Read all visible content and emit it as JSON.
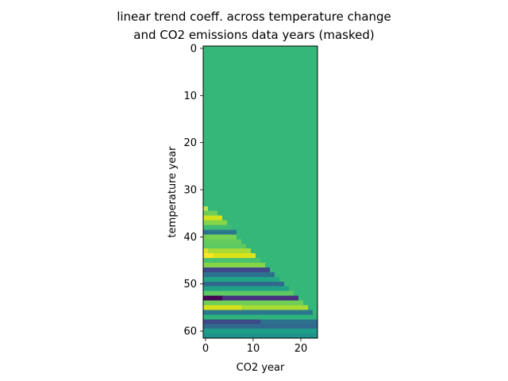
{
  "chart_data": {
    "type": "heatmap",
    "title": [
      "linear trend coeff. across temperature change",
      "and CO2 emissions data years (masked)"
    ],
    "xlabel": "CO2 year",
    "ylabel": "temperature year",
    "x_ticks": [
      0,
      10,
      20
    ],
    "y_ticks": [
      0,
      10,
      20,
      30,
      40,
      50,
      60
    ],
    "colormap": "viridis",
    "masked_color": "#35b779",
    "grid": false,
    "legend": "none",
    "x_range": [
      -0.5,
      23.5
    ],
    "y_range": [
      61.5,
      -0.5
    ],
    "n_cols": 24,
    "n_rows": 62,
    "rows": [
      {
        "t": 34,
        "cells": [
          [
            0,
            0,
            "#bde64d"
          ]
        ]
      },
      {
        "t": 35,
        "cells": [
          [
            0,
            2,
            "#6ece58"
          ]
        ]
      },
      {
        "t": 36,
        "cells": [
          [
            0,
            3,
            "#d2e21b"
          ]
        ]
      },
      {
        "t": 37,
        "cells": [
          [
            0,
            4,
            "#86d549"
          ]
        ]
      },
      {
        "t": 38,
        "cells": [
          [
            0,
            5,
            "#3fbc73"
          ]
        ]
      },
      {
        "t": 39,
        "cells": [
          [
            0,
            0,
            "#2c728e"
          ],
          [
            1,
            6,
            "#2a788e"
          ]
        ]
      },
      {
        "t": 40,
        "cells": [
          [
            0,
            6,
            "#75d054"
          ]
        ]
      },
      {
        "t": 41,
        "cells": [
          [
            0,
            7,
            "#63cb5f"
          ]
        ]
      },
      {
        "t": 42,
        "cells": [
          [
            0,
            8,
            "#5ec962"
          ]
        ]
      },
      {
        "t": 43,
        "cells": [
          [
            0,
            0,
            "#dde318"
          ],
          [
            1,
            9,
            "#a8db34"
          ]
        ]
      },
      {
        "t": 44,
        "cells": [
          [
            0,
            1,
            "#fde725"
          ],
          [
            2,
            10,
            "#dde318"
          ]
        ]
      },
      {
        "t": 45,
        "cells": [
          [
            0,
            11,
            "#4ac16d"
          ]
        ]
      },
      {
        "t": 46,
        "cells": [
          [
            0,
            12,
            "#86d549"
          ]
        ]
      },
      {
        "t": 47,
        "cells": [
          [
            0,
            13,
            "#3e4989"
          ]
        ]
      },
      {
        "t": 48,
        "cells": [
          [
            0,
            14,
            "#2c728e"
          ]
        ]
      },
      {
        "t": 49,
        "cells": [
          [
            0,
            15,
            "#21a585"
          ]
        ]
      },
      {
        "t": 50,
        "cells": [
          [
            0,
            16,
            "#31688e"
          ]
        ]
      },
      {
        "t": 51,
        "cells": [
          [
            0,
            17,
            "#1fa187"
          ]
        ]
      },
      {
        "t": 52,
        "cells": [
          [
            0,
            18,
            "#5ec962"
          ]
        ]
      },
      {
        "t": 53,
        "cells": [
          [
            0,
            3,
            "#440154"
          ],
          [
            4,
            19,
            "#46327e"
          ]
        ]
      },
      {
        "t": 54,
        "cells": [
          [
            0,
            20,
            "#6ece58"
          ]
        ]
      },
      {
        "t": 55,
        "cells": [
          [
            0,
            7,
            "#d8e219"
          ],
          [
            8,
            21,
            "#a8db34"
          ]
        ]
      },
      {
        "t": 56,
        "cells": [
          [
            0,
            22,
            "#2a788e"
          ]
        ]
      },
      {
        "t": 57,
        "cells": [
          [
            0,
            23,
            "#2fb47c"
          ]
        ]
      },
      {
        "t": 58,
        "cells": [
          [
            0,
            11,
            "#3e4989"
          ],
          [
            12,
            23,
            "#2c728e"
          ]
        ]
      },
      {
        "t": 59,
        "cells": [
          [
            0,
            23,
            "#31688e"
          ]
        ]
      },
      {
        "t": 60,
        "cells": [
          [
            0,
            23,
            "#1f9e89"
          ]
        ]
      },
      {
        "t": 61,
        "cells": [
          [
            0,
            23,
            "#20928c"
          ]
        ]
      }
    ]
  }
}
